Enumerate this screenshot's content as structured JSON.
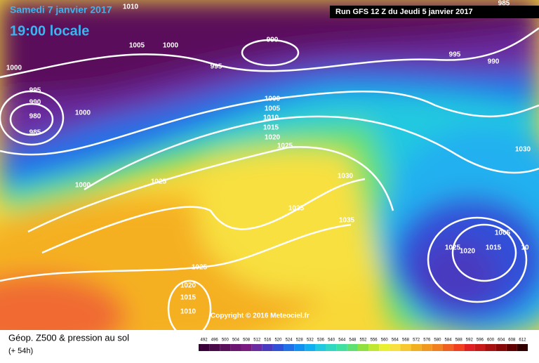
{
  "header": {
    "date": "Samedi 7 janvier 2017",
    "time": "19:00 locale",
    "run": "Run GFS 12 Z du Jeudi 5 janvier 2017"
  },
  "copyright": "Copyright © 2016 Meteociel.fr",
  "legend": {
    "title": "Géop. Z500 & pression au sol",
    "subtitle": "(+ 54h)",
    "levels": [
      492,
      496,
      500,
      504,
      508,
      512,
      516,
      520,
      524,
      528,
      532,
      536,
      540,
      544,
      548,
      552,
      556,
      560,
      564,
      568,
      572,
      576,
      580,
      584,
      588,
      592,
      596,
      600,
      604,
      608,
      612
    ],
    "colors": [
      "#3a003a",
      "#4a0a4a",
      "#5a0f5a",
      "#6b1470",
      "#7a1a80",
      "#6a2aa0",
      "#4a3ac0",
      "#3050d8",
      "#2070e8",
      "#1090f0",
      "#10b0f0",
      "#20c8e0",
      "#30d8c0",
      "#40e0a0",
      "#60e070",
      "#90e040",
      "#c0e830",
      "#e8f030",
      "#f8e040",
      "#f8c830",
      "#f0b020",
      "#f09820",
      "#f08020",
      "#f06020",
      "#f04020",
      "#e02020",
      "#c81818",
      "#a81010",
      "#880808",
      "#600000",
      "#300000"
    ]
  },
  "isobars": [
    "1010",
    "1005",
    "1000",
    "990",
    "995",
    "1000",
    "995",
    "990",
    "980",
    "985",
    "1000",
    "1000",
    "1005",
    "1010",
    "1015",
    "1020",
    "1025",
    "1025",
    "1000",
    "1030",
    "1035",
    "1035",
    "985",
    "995",
    "990",
    "1030",
    "1005",
    "1025",
    "1020",
    "1015",
    "10",
    "1025",
    "1020",
    "1015",
    "1010"
  ]
}
